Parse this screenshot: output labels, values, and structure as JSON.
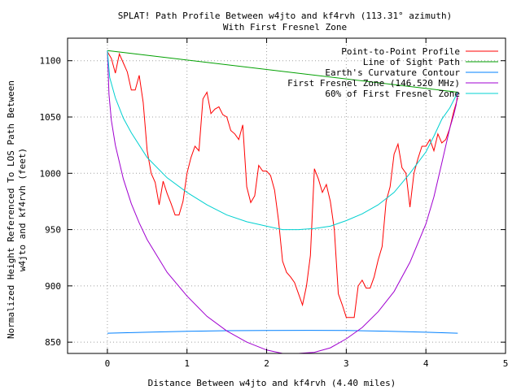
{
  "chart_data": {
    "type": "line",
    "title": "SPLAT! Path Profile Between w4jto and kf4rvh (113.31° azimuth)",
    "subtitle": "With First Fresnel Zone",
    "xlabel": "Distance Between w4jto and kf4rvh (4.40 miles)",
    "ylabel_line1": "Normalized Height Referenced To LOS Path Between",
    "ylabel_line2": "w4jto and kf4rvh (feet)",
    "xlim": [
      -0.5,
      5
    ],
    "ylim": [
      840,
      1120
    ],
    "grid": true,
    "legend_position": "top-right",
    "x_ticks": [
      0,
      1,
      2,
      3,
      4,
      5
    ],
    "y_ticks": [
      850,
      900,
      950,
      1000,
      1050,
      1100
    ],
    "series": [
      {
        "name": "Point-to-Point Profile",
        "color": "#ff0000",
        "points": [
          [
            0,
            1108
          ],
          [
            0.05,
            1102
          ],
          [
            0.1,
            1089
          ],
          [
            0.15,
            1106
          ],
          [
            0.2,
            1098
          ],
          [
            0.25,
            1090
          ],
          [
            0.3,
            1074
          ],
          [
            0.35,
            1074
          ],
          [
            0.4,
            1087
          ],
          [
            0.45,
            1063
          ],
          [
            0.5,
            1020
          ],
          [
            0.55,
            1000
          ],
          [
            0.6,
            992
          ],
          [
            0.65,
            972
          ],
          [
            0.7,
            993
          ],
          [
            0.75,
            982
          ],
          [
            0.8,
            973
          ],
          [
            0.85,
            963
          ],
          [
            0.9,
            963
          ],
          [
            0.95,
            975
          ],
          [
            1.0,
            1000
          ],
          [
            1.05,
            1014
          ],
          [
            1.1,
            1024
          ],
          [
            1.15,
            1020
          ],
          [
            1.2,
            1066
          ],
          [
            1.25,
            1072
          ],
          [
            1.3,
            1053
          ],
          [
            1.35,
            1057
          ],
          [
            1.4,
            1059
          ],
          [
            1.45,
            1052
          ],
          [
            1.5,
            1050
          ],
          [
            1.55,
            1038
          ],
          [
            1.6,
            1035
          ],
          [
            1.65,
            1030
          ],
          [
            1.7,
            1043
          ],
          [
            1.75,
            988
          ],
          [
            1.8,
            974
          ],
          [
            1.85,
            980
          ],
          [
            1.9,
            1007
          ],
          [
            1.95,
            1002
          ],
          [
            2.0,
            1002
          ],
          [
            2.05,
            998
          ],
          [
            2.1,
            985
          ],
          [
            2.15,
            958
          ],
          [
            2.2,
            922
          ],
          [
            2.25,
            912
          ],
          [
            2.3,
            908
          ],
          [
            2.35,
            903
          ],
          [
            2.4,
            893
          ],
          [
            2.45,
            883
          ],
          [
            2.5,
            900
          ],
          [
            2.55,
            927
          ],
          [
            2.6,
            1004
          ],
          [
            2.65,
            995
          ],
          [
            2.7,
            983
          ],
          [
            2.75,
            990
          ],
          [
            2.8,
            975
          ],
          [
            2.85,
            950
          ],
          [
            2.9,
            893
          ],
          [
            2.95,
            883
          ],
          [
            3.0,
            872
          ],
          [
            3.05,
            872
          ],
          [
            3.1,
            872
          ],
          [
            3.15,
            900
          ],
          [
            3.2,
            905
          ],
          [
            3.25,
            898
          ],
          [
            3.3,
            898
          ],
          [
            3.35,
            908
          ],
          [
            3.4,
            923
          ],
          [
            3.45,
            935
          ],
          [
            3.5,
            975
          ],
          [
            3.55,
            988
          ],
          [
            3.6,
            1017
          ],
          [
            3.65,
            1026
          ],
          [
            3.7,
            1005
          ],
          [
            3.75,
            1000
          ],
          [
            3.8,
            970
          ],
          [
            3.85,
            1000
          ],
          [
            3.9,
            1013
          ],
          [
            3.95,
            1024
          ],
          [
            4.0,
            1024
          ],
          [
            4.05,
            1030
          ],
          [
            4.1,
            1020
          ],
          [
            4.15,
            1035
          ],
          [
            4.2,
            1027
          ],
          [
            4.25,
            1030
          ],
          [
            4.3,
            1040
          ],
          [
            4.35,
            1055
          ],
          [
            4.4,
            1067
          ]
        ]
      },
      {
        "name": "Line of Sight Path",
        "color": "#00a000",
        "points": [
          [
            0,
            1109
          ],
          [
            4.4,
            1072
          ]
        ]
      },
      {
        "name": "Earth's Curvature Contour",
        "color": "#0080ff",
        "points": [
          [
            0,
            858
          ],
          [
            0.5,
            858.8
          ],
          [
            1.0,
            859.6
          ],
          [
            1.5,
            860.2
          ],
          [
            2.0,
            860.4
          ],
          [
            2.5,
            860.5
          ],
          [
            3.0,
            860.4
          ],
          [
            3.5,
            859.8
          ],
          [
            4.0,
            858.8
          ],
          [
            4.4,
            858
          ]
        ]
      },
      {
        "name": "First Fresnel Zone (146.520 MHz)",
        "color": "#a000d0",
        "points": [
          [
            0,
            1109
          ],
          [
            0.02,
            1070
          ],
          [
            0.05,
            1047
          ],
          [
            0.1,
            1025
          ],
          [
            0.2,
            995
          ],
          [
            0.3,
            973
          ],
          [
            0.4,
            956
          ],
          [
            0.5,
            941
          ],
          [
            0.75,
            912
          ],
          [
            1.0,
            891
          ],
          [
            1.25,
            873
          ],
          [
            1.5,
            860
          ],
          [
            1.75,
            850
          ],
          [
            2.0,
            843
          ],
          [
            2.2,
            840
          ],
          [
            2.4,
            840
          ],
          [
            2.6,
            841
          ],
          [
            2.8,
            845
          ],
          [
            3.0,
            853
          ],
          [
            3.2,
            863
          ],
          [
            3.4,
            877
          ],
          [
            3.6,
            895
          ],
          [
            3.8,
            921
          ],
          [
            4.0,
            955
          ],
          [
            4.1,
            979
          ],
          [
            4.2,
            1009
          ],
          [
            4.3,
            1040
          ],
          [
            4.35,
            1052
          ],
          [
            4.38,
            1061
          ],
          [
            4.4,
            1072
          ]
        ]
      },
      {
        "name": "60% of First Fresnel Zone",
        "color": "#00d0d0",
        "points": [
          [
            0,
            1109
          ],
          [
            0.03,
            1085
          ],
          [
            0.1,
            1067
          ],
          [
            0.2,
            1049
          ],
          [
            0.3,
            1036
          ],
          [
            0.5,
            1014
          ],
          [
            0.75,
            996
          ],
          [
            1.0,
            983
          ],
          [
            1.25,
            972
          ],
          [
            1.5,
            963
          ],
          [
            1.75,
            957
          ],
          [
            2.0,
            953
          ],
          [
            2.2,
            950
          ],
          [
            2.4,
            950
          ],
          [
            2.6,
            951
          ],
          [
            2.8,
            953
          ],
          [
            3.0,
            958
          ],
          [
            3.2,
            964
          ],
          [
            3.4,
            972
          ],
          [
            3.6,
            983
          ],
          [
            3.8,
            1000
          ],
          [
            4.0,
            1019
          ],
          [
            4.1,
            1033
          ],
          [
            4.2,
            1048
          ],
          [
            4.3,
            1058
          ],
          [
            4.4,
            1072
          ]
        ]
      }
    ]
  }
}
